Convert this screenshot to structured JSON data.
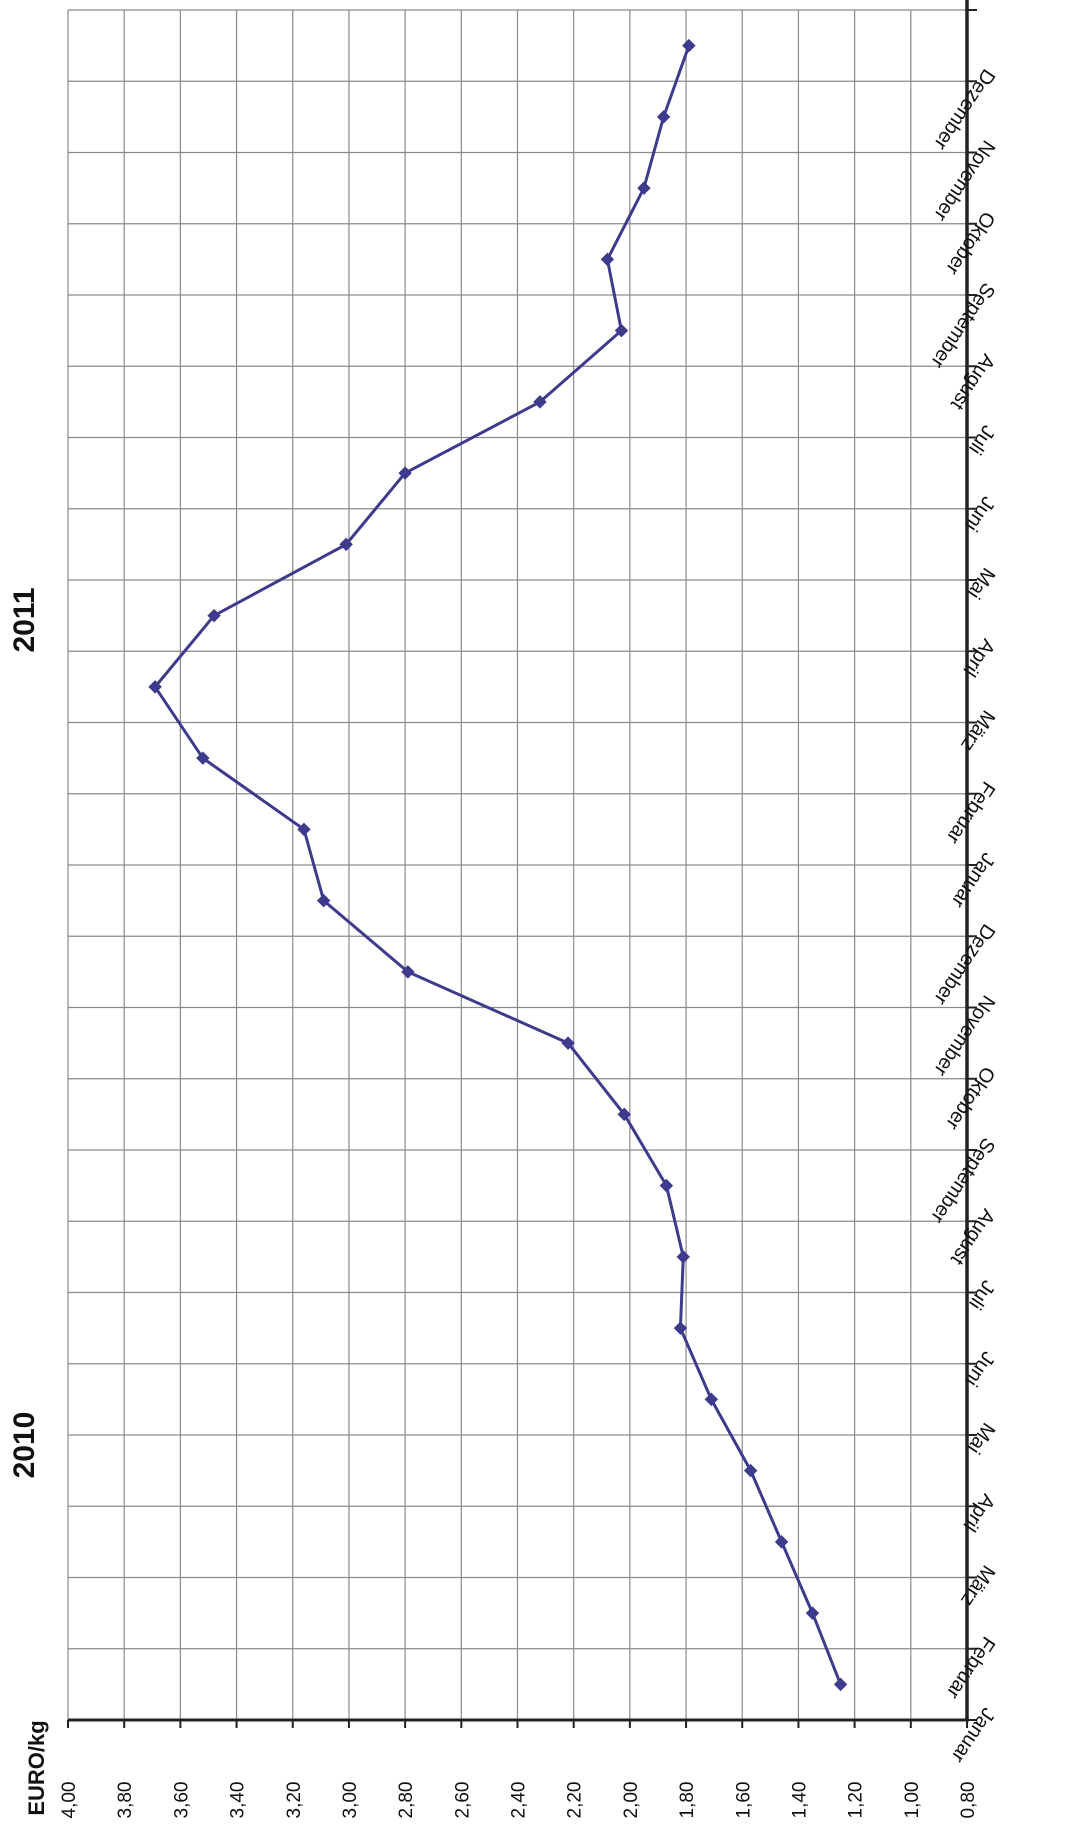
{
  "chart_data": {
    "type": "line",
    "orientation": "rotated-90-clockwise",
    "unit_label": "EURO/kg",
    "year_labels": [
      "2010",
      "2011"
    ],
    "categories": [
      "Januar",
      "Februar",
      "März",
      "April",
      "Mai",
      "Juni",
      "Juli",
      "August",
      "September",
      "Oktober",
      "November",
      "Dezember",
      "Januar",
      "Februar",
      "März",
      "April",
      "Mai",
      "Juni",
      "Juli",
      "August",
      "September",
      "Oktober",
      "November",
      "Dezember"
    ],
    "category_years": [
      "2010",
      "2010",
      "2010",
      "2010",
      "2010",
      "2010",
      "2010",
      "2010",
      "2010",
      "2010",
      "2010",
      "2010",
      "2011",
      "2011",
      "2011",
      "2011",
      "2011",
      "2011",
      "2011",
      "2011",
      "2011",
      "2011",
      "2011",
      "2011"
    ],
    "values": [
      1.25,
      1.35,
      1.46,
      1.57,
      1.71,
      1.82,
      1.81,
      1.87,
      2.02,
      2.22,
      2.79,
      3.09,
      3.16,
      3.52,
      3.69,
      3.48,
      3.01,
      2.8,
      2.32,
      2.03,
      2.08,
      1.95,
      1.88,
      1.79
    ],
    "ylim": [
      0.8,
      4.0
    ],
    "y_ticks": [
      "4,00",
      "3,80",
      "3,60",
      "3,40",
      "3,20",
      "3,00",
      "2,80",
      "2,60",
      "2,40",
      "2,20",
      "2,00",
      "1,80",
      "1,60",
      "1,40",
      "1,20",
      "1,00",
      "0,80"
    ],
    "grid": true,
    "line_color": "#3e3a8c",
    "marker": "diamond"
  }
}
